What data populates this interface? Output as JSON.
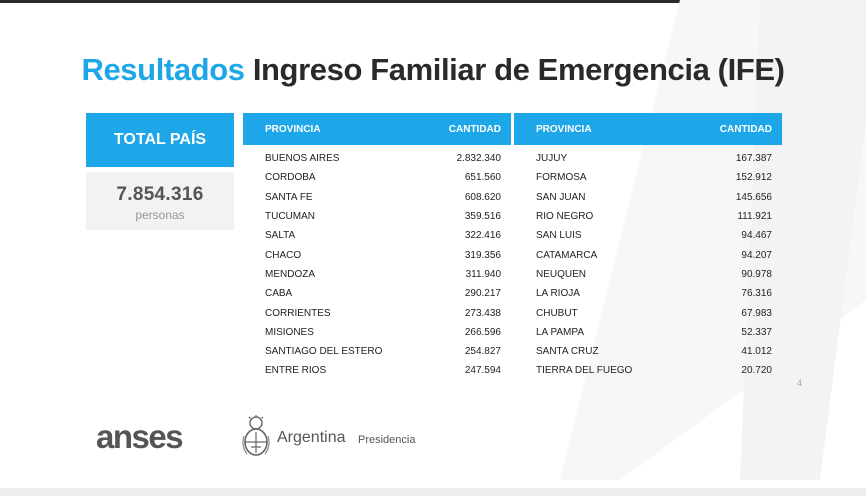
{
  "title": {
    "accent": "Resultados",
    "main": "Ingreso Familiar de Emergencia (IFE)"
  },
  "total": {
    "label": "TOTAL PAÍS",
    "value": "7.854.316",
    "unit": "personas"
  },
  "tables": [
    {
      "header": {
        "provincia": "PROVINCIA",
        "cantidad": "CANTIDAD"
      },
      "rows": [
        {
          "provincia": "BUENOS AIRES",
          "cantidad": "2.832.340"
        },
        {
          "provincia": "CORDOBA",
          "cantidad": "651.560"
        },
        {
          "provincia": "SANTA FE",
          "cantidad": "608.620"
        },
        {
          "provincia": "TUCUMAN",
          "cantidad": "359.516"
        },
        {
          "provincia": "SALTA",
          "cantidad": "322.416"
        },
        {
          "provincia": "CHACO",
          "cantidad": "319.356"
        },
        {
          "provincia": "MENDOZA",
          "cantidad": "311.940"
        },
        {
          "provincia": "CABA",
          "cantidad": "290.217"
        },
        {
          "provincia": "CORRIENTES",
          "cantidad": "273.438"
        },
        {
          "provincia": "MISIONES",
          "cantidad": "266.596"
        },
        {
          "provincia": "SANTIAGO DEL ESTERO",
          "cantidad": "254.827"
        },
        {
          "provincia": "ENTRE RIOS",
          "cantidad": "247.594"
        }
      ]
    },
    {
      "header": {
        "provincia": "PROVINCIA",
        "cantidad": "CANTIDAD"
      },
      "rows": [
        {
          "provincia": "JUJUY",
          "cantidad": "167.387"
        },
        {
          "provincia": "FORMOSA",
          "cantidad": "152.912"
        },
        {
          "provincia": "SAN JUAN",
          "cantidad": "145.656"
        },
        {
          "provincia": "RIO NEGRO",
          "cantidad": "111.921"
        },
        {
          "provincia": "SAN LUIS",
          "cantidad": "94.467"
        },
        {
          "provincia": "CATAMARCA",
          "cantidad": "94.207"
        },
        {
          "provincia": "NEUQUEN",
          "cantidad": "90.978"
        },
        {
          "provincia": "LA RIOJA",
          "cantidad": "76.316"
        },
        {
          "provincia": "CHUBUT",
          "cantidad": "67.983"
        },
        {
          "provincia": "LA PAMPA",
          "cantidad": "52.337"
        },
        {
          "provincia": "SANTA CRUZ",
          "cantidad": "41.012"
        },
        {
          "provincia": "TIERRA DEL FUEGO",
          "cantidad": "20.720"
        }
      ]
    }
  ],
  "page_number": "4",
  "logos": {
    "anses": "anses",
    "argentina": "Argentina",
    "presidencia": "Presidencia",
    "seal_icon": "argentina-coat-of-arms-icon"
  },
  "colors": {
    "accent": "#1ea7e8",
    "text_dark": "#2a2a2a"
  }
}
